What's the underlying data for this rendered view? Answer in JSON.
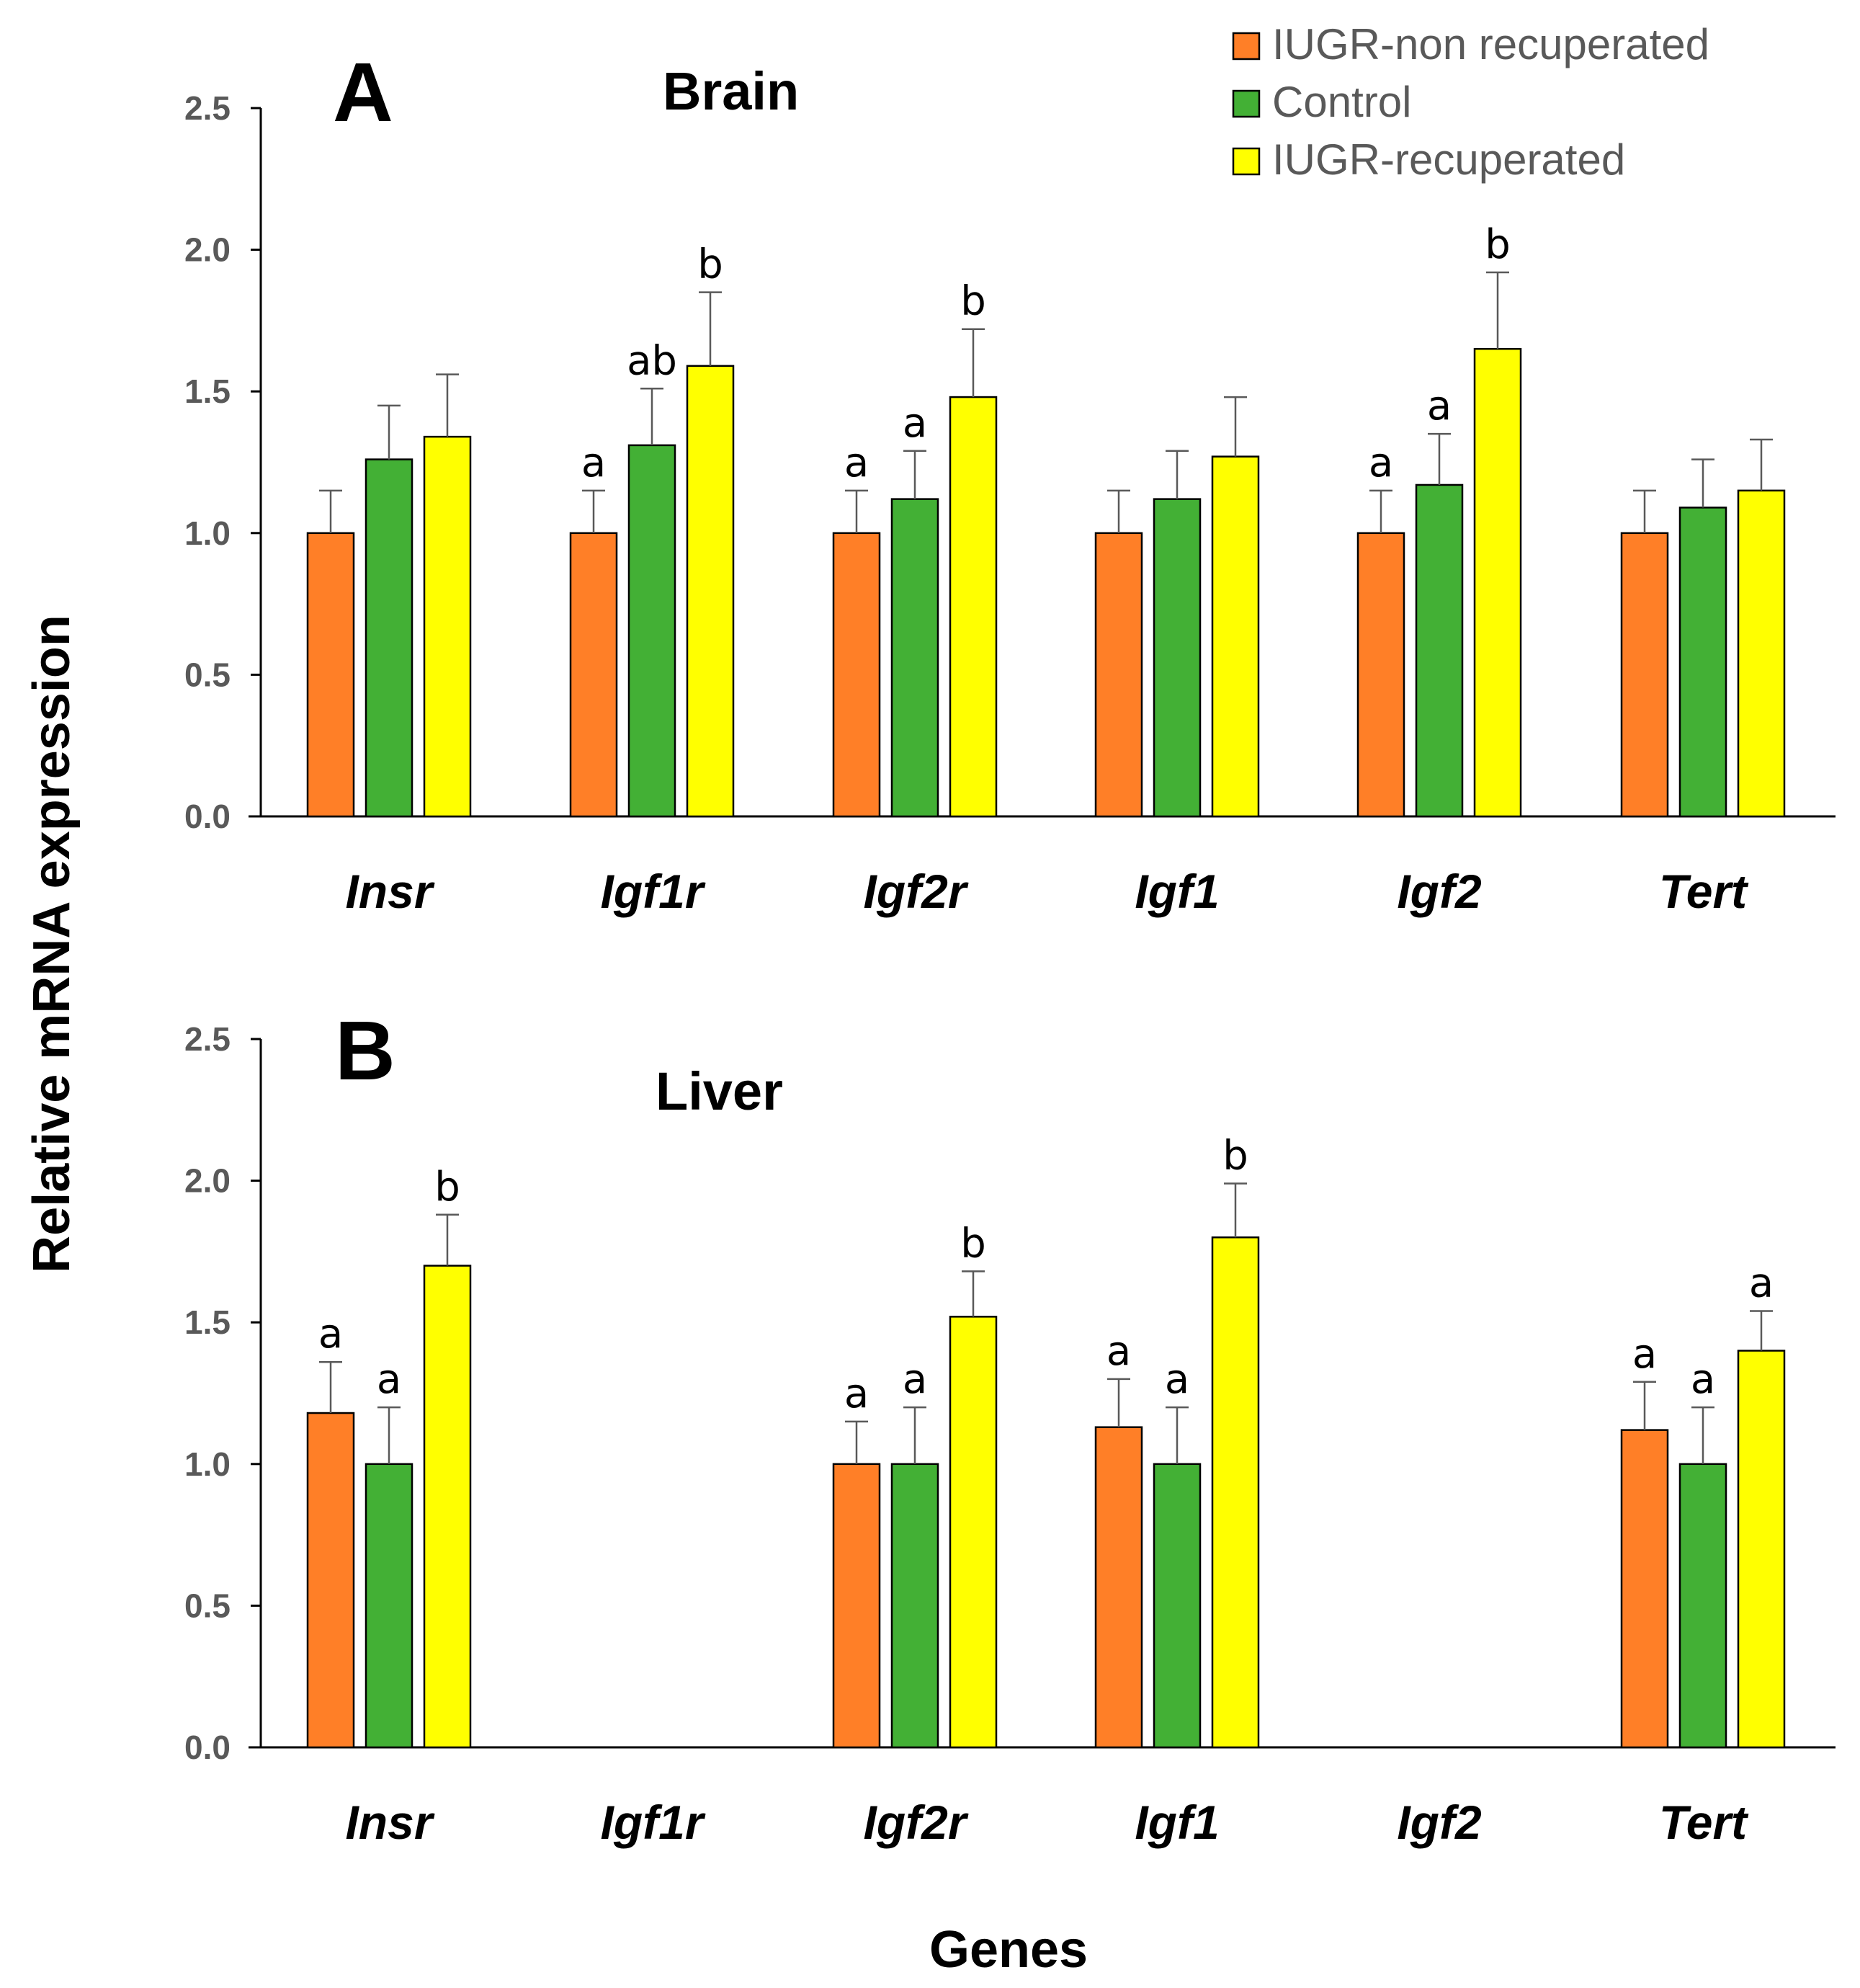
{
  "colors": {
    "IUGR-non recuperated": "#FF7F27",
    "Control": "#43B035",
    "IUGR-recuperated": "#FFFF00"
  },
  "ylabel": "Relative mRNA expression",
  "xlabel": "Genes",
  "legend": {
    "placement": "top-right",
    "entries": [
      "IUGR-non recuperated",
      "Control",
      "IUGR-recuperated"
    ]
  },
  "chart_data": [
    {
      "type": "bar",
      "panel": "A",
      "title": "Brain",
      "categories": [
        "Insr",
        "Igf1r",
        "Igf2r",
        "Igf1",
        "Igf2",
        "Tert"
      ],
      "ylim": [
        0,
        2.5
      ],
      "yticks": [
        "0.0",
        "0.5",
        "1.0",
        "1.5",
        "2.0",
        "2.5"
      ],
      "series": [
        {
          "name": "IUGR-non recuperated",
          "values": [
            1.0,
            1.0,
            1.0,
            1.0,
            1.0,
            1.0
          ],
          "errors": [
            0.15,
            0.15,
            0.15,
            0.15,
            0.15,
            0.15
          ],
          "labels": [
            "",
            "a",
            "a",
            "",
            "a",
            ""
          ]
        },
        {
          "name": "Control",
          "values": [
            1.26,
            1.31,
            1.12,
            1.12,
            1.17,
            1.09
          ],
          "errors": [
            0.19,
            0.2,
            0.17,
            0.17,
            0.18,
            0.17
          ],
          "labels": [
            "",
            "ab",
            "a",
            "",
            "a",
            ""
          ]
        },
        {
          "name": "IUGR-recuperated",
          "values": [
            1.34,
            1.59,
            1.48,
            1.27,
            1.65,
            1.15
          ],
          "errors": [
            0.22,
            0.26,
            0.24,
            0.21,
            0.27,
            0.18
          ],
          "labels": [
            "",
            "b",
            "b",
            "",
            "b",
            ""
          ]
        }
      ]
    },
    {
      "type": "bar",
      "panel": "B",
      "title": "Liver",
      "categories": [
        "Insr",
        "Igf1r",
        "Igf2r",
        "Igf1",
        "Igf2",
        "Tert"
      ],
      "ylim": [
        0,
        2.5
      ],
      "yticks": [
        "0.0",
        "0.5",
        "1.0",
        "1.5",
        "2.0",
        "2.5"
      ],
      "series": [
        {
          "name": "IUGR-non recuperated",
          "values": [
            1.18,
            null,
            1.0,
            1.13,
            null,
            1.12
          ],
          "errors": [
            0.18,
            null,
            0.15,
            0.17,
            null,
            0.17
          ],
          "labels": [
            "a",
            "",
            "a",
            "a",
            "",
            "a"
          ]
        },
        {
          "name": "Control",
          "values": [
            1.0,
            null,
            1.0,
            1.0,
            null,
            1.0
          ],
          "errors": [
            0.2,
            null,
            0.2,
            0.2,
            null,
            0.2
          ],
          "labels": [
            "a",
            "",
            "a",
            "a",
            "",
            "a"
          ]
        },
        {
          "name": "IUGR-recuperated",
          "values": [
            1.7,
            null,
            1.52,
            1.8,
            null,
            1.4
          ],
          "errors": [
            0.18,
            null,
            0.16,
            0.19,
            null,
            0.14
          ],
          "labels": [
            "b",
            "",
            "b",
            "b",
            "",
            "a"
          ]
        }
      ]
    }
  ]
}
